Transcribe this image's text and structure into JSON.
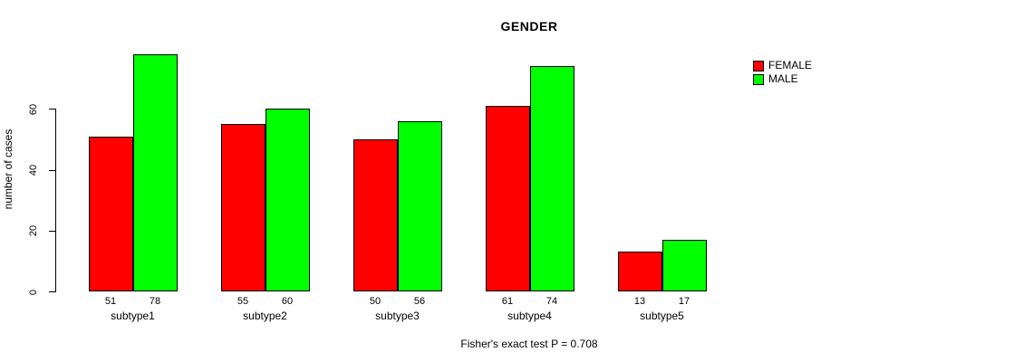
{
  "chart_data": {
    "type": "bar",
    "title": "GENDER",
    "xlabel": "",
    "ylabel": "number of cases",
    "caption": "Fisher's exact test P = 0.708",
    "categories": [
      "subtype1",
      "subtype2",
      "subtype3",
      "subtype4",
      "subtype5"
    ],
    "series": [
      {
        "name": "FEMALE",
        "color": "#ff0000",
        "values": [
          51,
          55,
          50,
          61,
          13
        ]
      },
      {
        "name": "MALE",
        "color": "#00ff00",
        "values": [
          78,
          60,
          56,
          74,
          17
        ]
      }
    ],
    "y_ticks": [
      0,
      20,
      40,
      60
    ],
    "ylim": [
      0,
      78
    ],
    "grid": false,
    "legend_position": "top-right",
    "bar_value_labels_shown": true
  },
  "colors": {
    "background": "#ffffff",
    "axis": "#000000",
    "text": "#000000",
    "female": "#ff0000",
    "male": "#00ff00"
  }
}
